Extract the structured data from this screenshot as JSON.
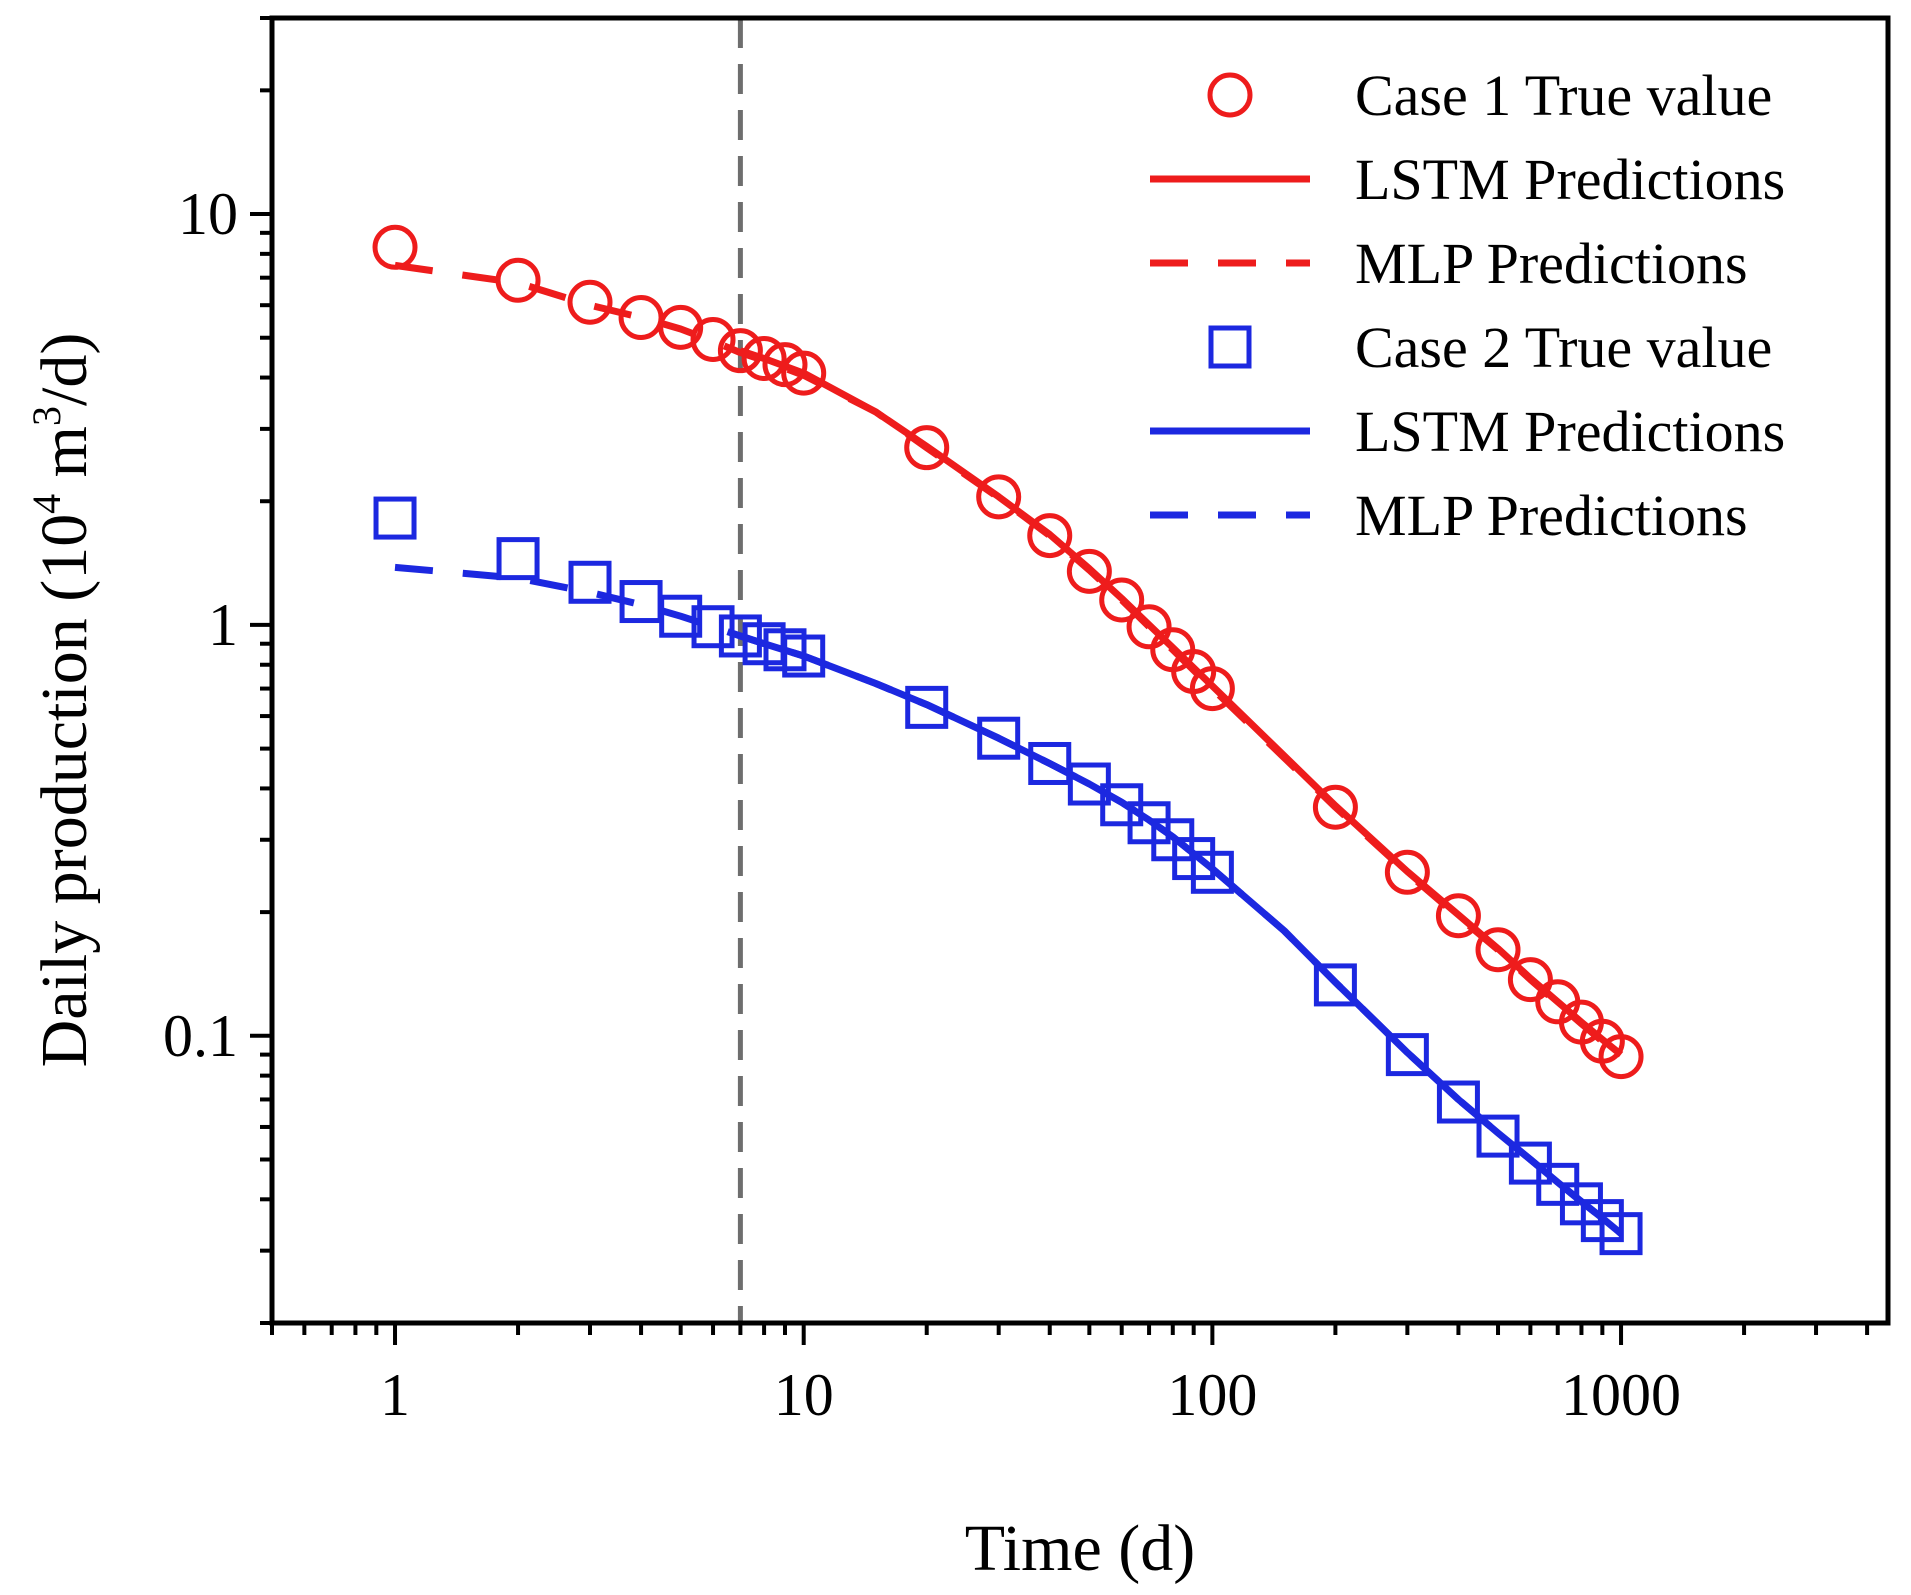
{
  "chart_data": {
    "type": "scatter",
    "xscale": "log",
    "yscale": "log",
    "xlabel": "Time (d)",
    "ylabel": {
      "prefix": "Daily production (10",
      "sup1": "4",
      "mid": " m",
      "sup2": "3",
      "suffix": "/d)"
    },
    "xlim": [
      0.5,
      4500
    ],
    "ylim": [
      0.02,
      30
    ],
    "xticks": [
      {
        "value": 1,
        "label": "1"
      },
      {
        "value": 10,
        "label": "10"
      },
      {
        "value": 100,
        "label": "100"
      },
      {
        "value": 1000,
        "label": "1000"
      }
    ],
    "yticks": [
      {
        "value": 0.1,
        "label": "0.1"
      },
      {
        "value": 1,
        "label": "1"
      },
      {
        "value": 10,
        "label": "10"
      }
    ],
    "vline_x": 7,
    "legend_position": "top-right",
    "colors": {
      "case1": "#ee1c1c",
      "case2": "#1c28e0",
      "vline": "#6e6e6e",
      "axis": "#000000"
    },
    "legend": [
      {
        "label": "Case 1 True value",
        "kind": "marker-circle",
        "series": "case1"
      },
      {
        "label": "LSTM Predictions",
        "kind": "line-solid",
        "series": "case1"
      },
      {
        "label": "MLP Predictions",
        "kind": "line-dashed",
        "series": "case1"
      },
      {
        "label": "Case 2 True value",
        "kind": "marker-square",
        "series": "case2"
      },
      {
        "label": "LSTM Predictions",
        "kind": "line-solid",
        "series": "case2"
      },
      {
        "label": "MLP Predictions",
        "kind": "line-dashed",
        "series": "case2"
      }
    ],
    "series": [
      {
        "name": "Case 1 True value",
        "key": "case1",
        "marker": "circle",
        "x": [
          1,
          2,
          3,
          4,
          5,
          6,
          7,
          8,
          9,
          10,
          20,
          30,
          40,
          50,
          60,
          70,
          80,
          90,
          100,
          200,
          300,
          400,
          500,
          600,
          700,
          800,
          900,
          1000
        ],
        "y": [
          8.3,
          6.9,
          6.1,
          5.6,
          5.3,
          4.95,
          4.65,
          4.45,
          4.3,
          4.1,
          2.7,
          2.05,
          1.65,
          1.35,
          1.15,
          0.99,
          0.87,
          0.77,
          0.7,
          0.36,
          0.25,
          0.196,
          0.162,
          0.137,
          0.121,
          0.108,
          0.097,
          0.089
        ]
      },
      {
        "name": "Case 1 LSTM Predictions",
        "key": "case1",
        "style": "solid",
        "x": [
          7,
          8,
          10,
          15,
          20,
          30,
          40,
          50,
          60,
          70,
          80,
          100,
          150,
          200,
          300,
          400,
          500,
          600,
          700,
          800,
          900,
          1000
        ],
        "y": [
          4.65,
          4.45,
          4.1,
          3.3,
          2.72,
          2.05,
          1.66,
          1.37,
          1.16,
          1.0,
          0.88,
          0.71,
          0.48,
          0.363,
          0.251,
          0.197,
          0.163,
          0.138,
          0.121,
          0.108,
          0.098,
          0.09
        ]
      },
      {
        "name": "Case 1 MLP Predictions",
        "key": "case1",
        "style": "dashed",
        "x": [
          1,
          2,
          3,
          4,
          5,
          6,
          7,
          8,
          10,
          15,
          20,
          30,
          40,
          50,
          60,
          70,
          80,
          100,
          150,
          200,
          300,
          400,
          500,
          600,
          700,
          800,
          900,
          1000
        ],
        "y": [
          7.5,
          6.8,
          6.0,
          5.6,
          5.25,
          4.9,
          4.6,
          4.4,
          4.05,
          3.3,
          2.7,
          2.04,
          1.65,
          1.36,
          1.15,
          0.99,
          0.87,
          0.7,
          0.475,
          0.36,
          0.249,
          0.195,
          0.162,
          0.137,
          0.12,
          0.107,
          0.097,
          0.089
        ]
      },
      {
        "name": "Case 2 True value",
        "key": "case2",
        "marker": "square",
        "x": [
          1,
          2,
          3,
          4,
          5,
          6,
          7,
          8,
          9,
          10,
          20,
          30,
          40,
          50,
          60,
          70,
          80,
          90,
          100,
          200,
          300,
          400,
          500,
          600,
          700,
          800,
          900,
          1000
        ],
        "y": [
          1.82,
          1.45,
          1.27,
          1.14,
          1.05,
          0.99,
          0.94,
          0.9,
          0.87,
          0.84,
          0.63,
          0.53,
          0.46,
          0.41,
          0.365,
          0.33,
          0.3,
          0.27,
          0.25,
          0.133,
          0.09,
          0.069,
          0.057,
          0.049,
          0.0435,
          0.039,
          0.0355,
          0.033
        ]
      },
      {
        "name": "Case 2 LSTM Predictions",
        "key": "case2",
        "style": "solid",
        "x": [
          7,
          8,
          10,
          15,
          20,
          30,
          40,
          50,
          60,
          70,
          80,
          100,
          150,
          200,
          300,
          400,
          500,
          600,
          700,
          800,
          900,
          1000
        ],
        "y": [
          0.94,
          0.9,
          0.84,
          0.72,
          0.64,
          0.53,
          0.46,
          0.41,
          0.37,
          0.335,
          0.305,
          0.255,
          0.18,
          0.135,
          0.091,
          0.07,
          0.058,
          0.05,
          0.044,
          0.0395,
          0.036,
          0.033
        ]
      },
      {
        "name": "Case 2 MLP Predictions",
        "key": "case2",
        "style": "dashed",
        "x": [
          1,
          2,
          3,
          4,
          5,
          6,
          7,
          8,
          10,
          15,
          20,
          30,
          40,
          50,
          60,
          70,
          80,
          100,
          150,
          200,
          300,
          400,
          500,
          600,
          700,
          800,
          900,
          1000
        ],
        "y": [
          1.38,
          1.3,
          1.2,
          1.12,
          1.05,
          0.99,
          0.94,
          0.9,
          0.84,
          0.72,
          0.64,
          0.53,
          0.46,
          0.41,
          0.37,
          0.335,
          0.305,
          0.255,
          0.18,
          0.135,
          0.091,
          0.07,
          0.058,
          0.05,
          0.044,
          0.0395,
          0.036,
          0.033
        ]
      }
    ]
  }
}
